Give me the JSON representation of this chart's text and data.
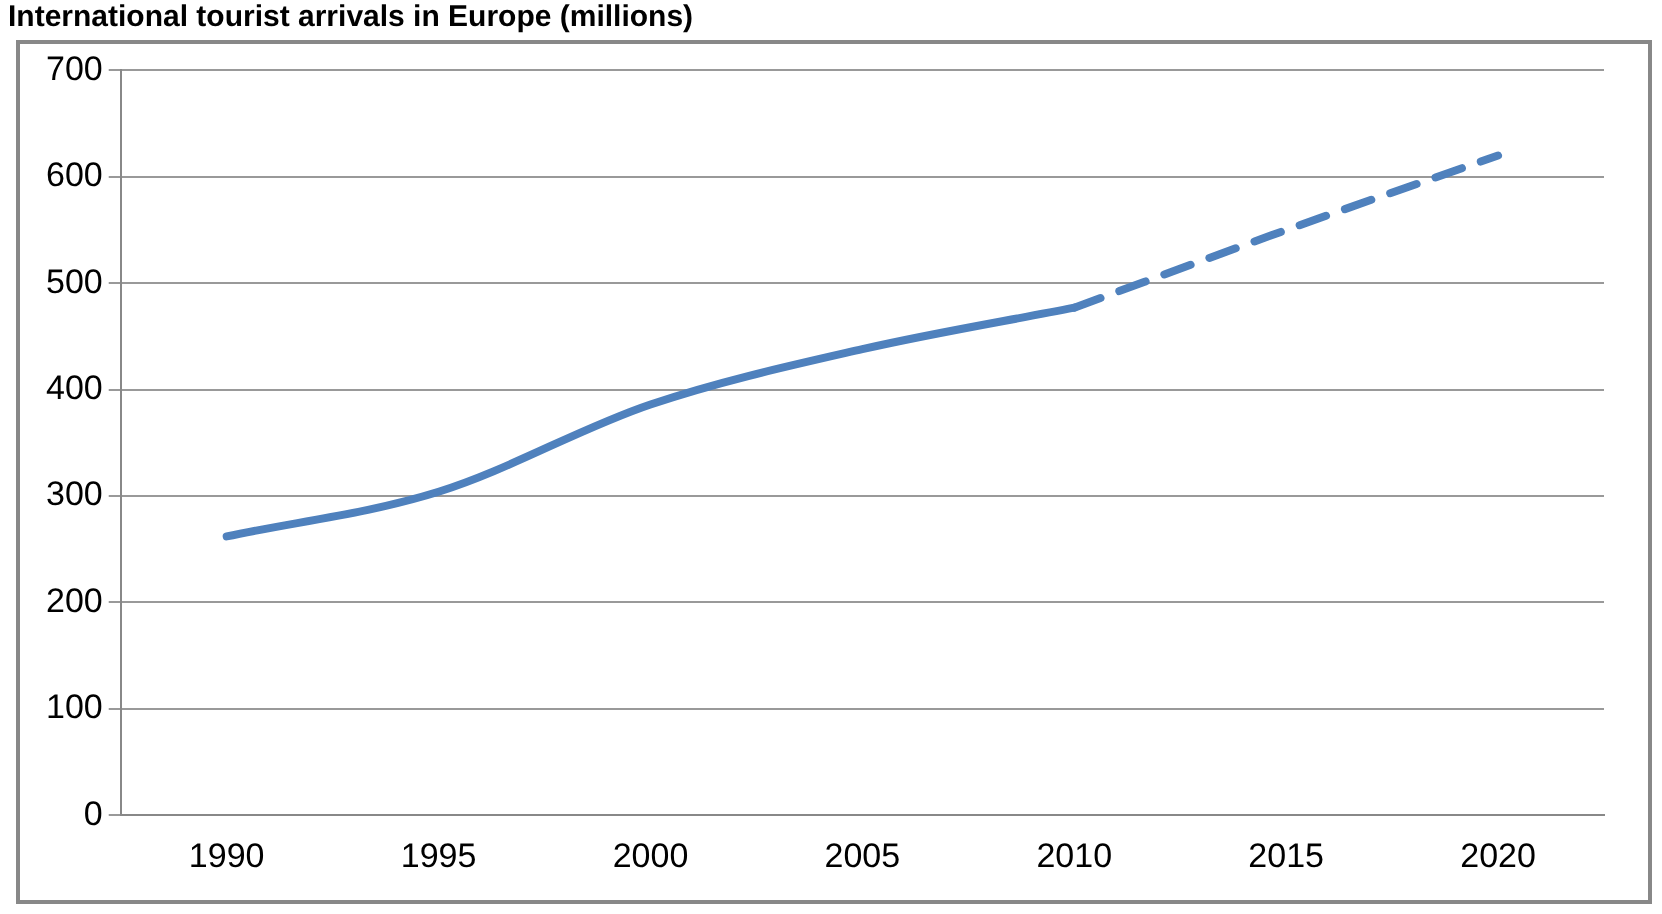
{
  "chart_data": {
    "type": "line",
    "title": "International tourist arrivals in Europe (millions)",
    "categories": [
      "1990",
      "1995",
      "2000",
      "2005",
      "2010",
      "2015",
      "2020"
    ],
    "series": [
      {
        "color": "#4f81bd",
        "line_style": "solid",
        "values": [
          262,
          304,
          386,
          438,
          477,
          null,
          null
        ]
      },
      {
        "color": "#4f81bd",
        "line_style": "dashed",
        "values": [
          null,
          null,
          null,
          null,
          477,
          550,
          620
        ]
      }
    ],
    "ylim": [
      0,
      700
    ],
    "yticks": [
      0,
      100,
      200,
      300,
      400,
      500,
      600,
      700
    ],
    "grid": "y",
    "legend": false,
    "marker": "none"
  }
}
